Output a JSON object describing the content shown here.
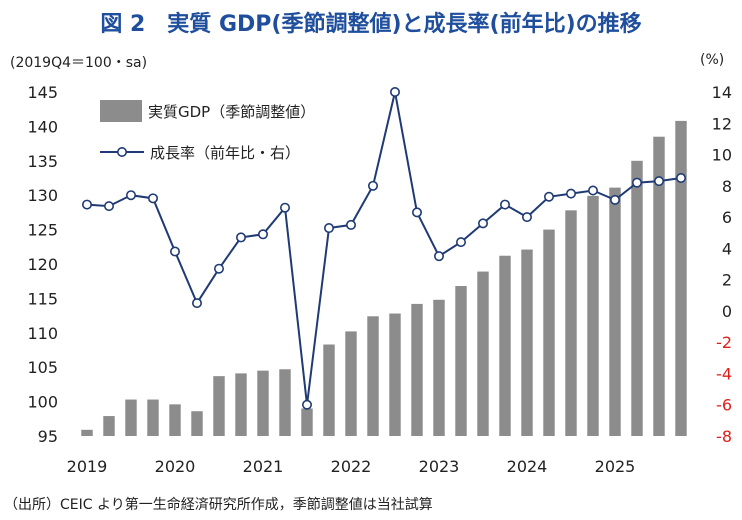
{
  "title": "図 2　実質 GDP(季節調整値)と成長率(前年比)の推移",
  "left_unit": "(2019Q4＝100・sa)",
  "right_unit": "(%)",
  "source": "（出所）CEIC より第一生命経済研究所作成，季節調整値は当社試算",
  "colors": {
    "bar": "#8c8c8c",
    "line": "#1f3a75",
    "marker_fill": "#ffffff",
    "negative_tick": "#e0201b"
  },
  "chart_data": {
    "type": "bar+line",
    "x_tick_labels": [
      "2019",
      "2020",
      "2021",
      "2022",
      "2023",
      "2024",
      "2025"
    ],
    "quarters": [
      "2019Q1",
      "2019Q2",
      "2019Q3",
      "2019Q4",
      "2020Q1",
      "2020Q2",
      "2020Q3",
      "2020Q4",
      "2021Q1",
      "2021Q2",
      "2021Q3",
      "2021Q4",
      "2022Q1",
      "2022Q2",
      "2022Q3",
      "2022Q4",
      "2023Q1",
      "2023Q2",
      "2023Q3",
      "2023Q4",
      "2024Q1",
      "2024Q2",
      "2024Q3",
      "2024Q4",
      "2025Q1",
      "2025Q2",
      "2025Q3",
      "2025Q4"
    ],
    "left_axis": {
      "ylim": [
        95,
        145
      ],
      "ticks": [
        95,
        100,
        105,
        110,
        115,
        120,
        125,
        130,
        135,
        140,
        145
      ]
    },
    "right_axis": {
      "ylim": [
        -8,
        14
      ],
      "ticks": [
        -8,
        -6,
        -4,
        -2,
        0,
        2,
        4,
        6,
        8,
        10,
        12,
        14
      ]
    },
    "series": [
      {
        "name": "実質GDP（季節調整値）",
        "axis": "left",
        "type": "bar",
        "values": [
          95.9,
          97.9,
          100.3,
          100.3,
          99.6,
          98.6,
          103.7,
          104.1,
          104.5,
          104.7,
          99.0,
          108.3,
          110.2,
          112.4,
          112.8,
          114.2,
          114.8,
          116.8,
          118.9,
          121.2,
          122.1,
          125.0,
          127.8,
          129.9,
          131.1,
          135.0,
          138.5,
          140.8
        ]
      },
      {
        "name": "成長率（前年比・右）",
        "axis": "right",
        "type": "line",
        "values": [
          6.8,
          6.7,
          7.4,
          7.2,
          3.8,
          0.5,
          2.7,
          4.7,
          4.9,
          6.6,
          -6.0,
          5.3,
          5.5,
          8.0,
          14.0,
          6.3,
          3.5,
          4.4,
          5.6,
          6.8,
          6.0,
          7.3,
          7.5,
          7.7,
          7.1,
          8.2,
          8.3,
          8.5
        ]
      }
    ],
    "legend_position": "top-left",
    "grid": false
  }
}
